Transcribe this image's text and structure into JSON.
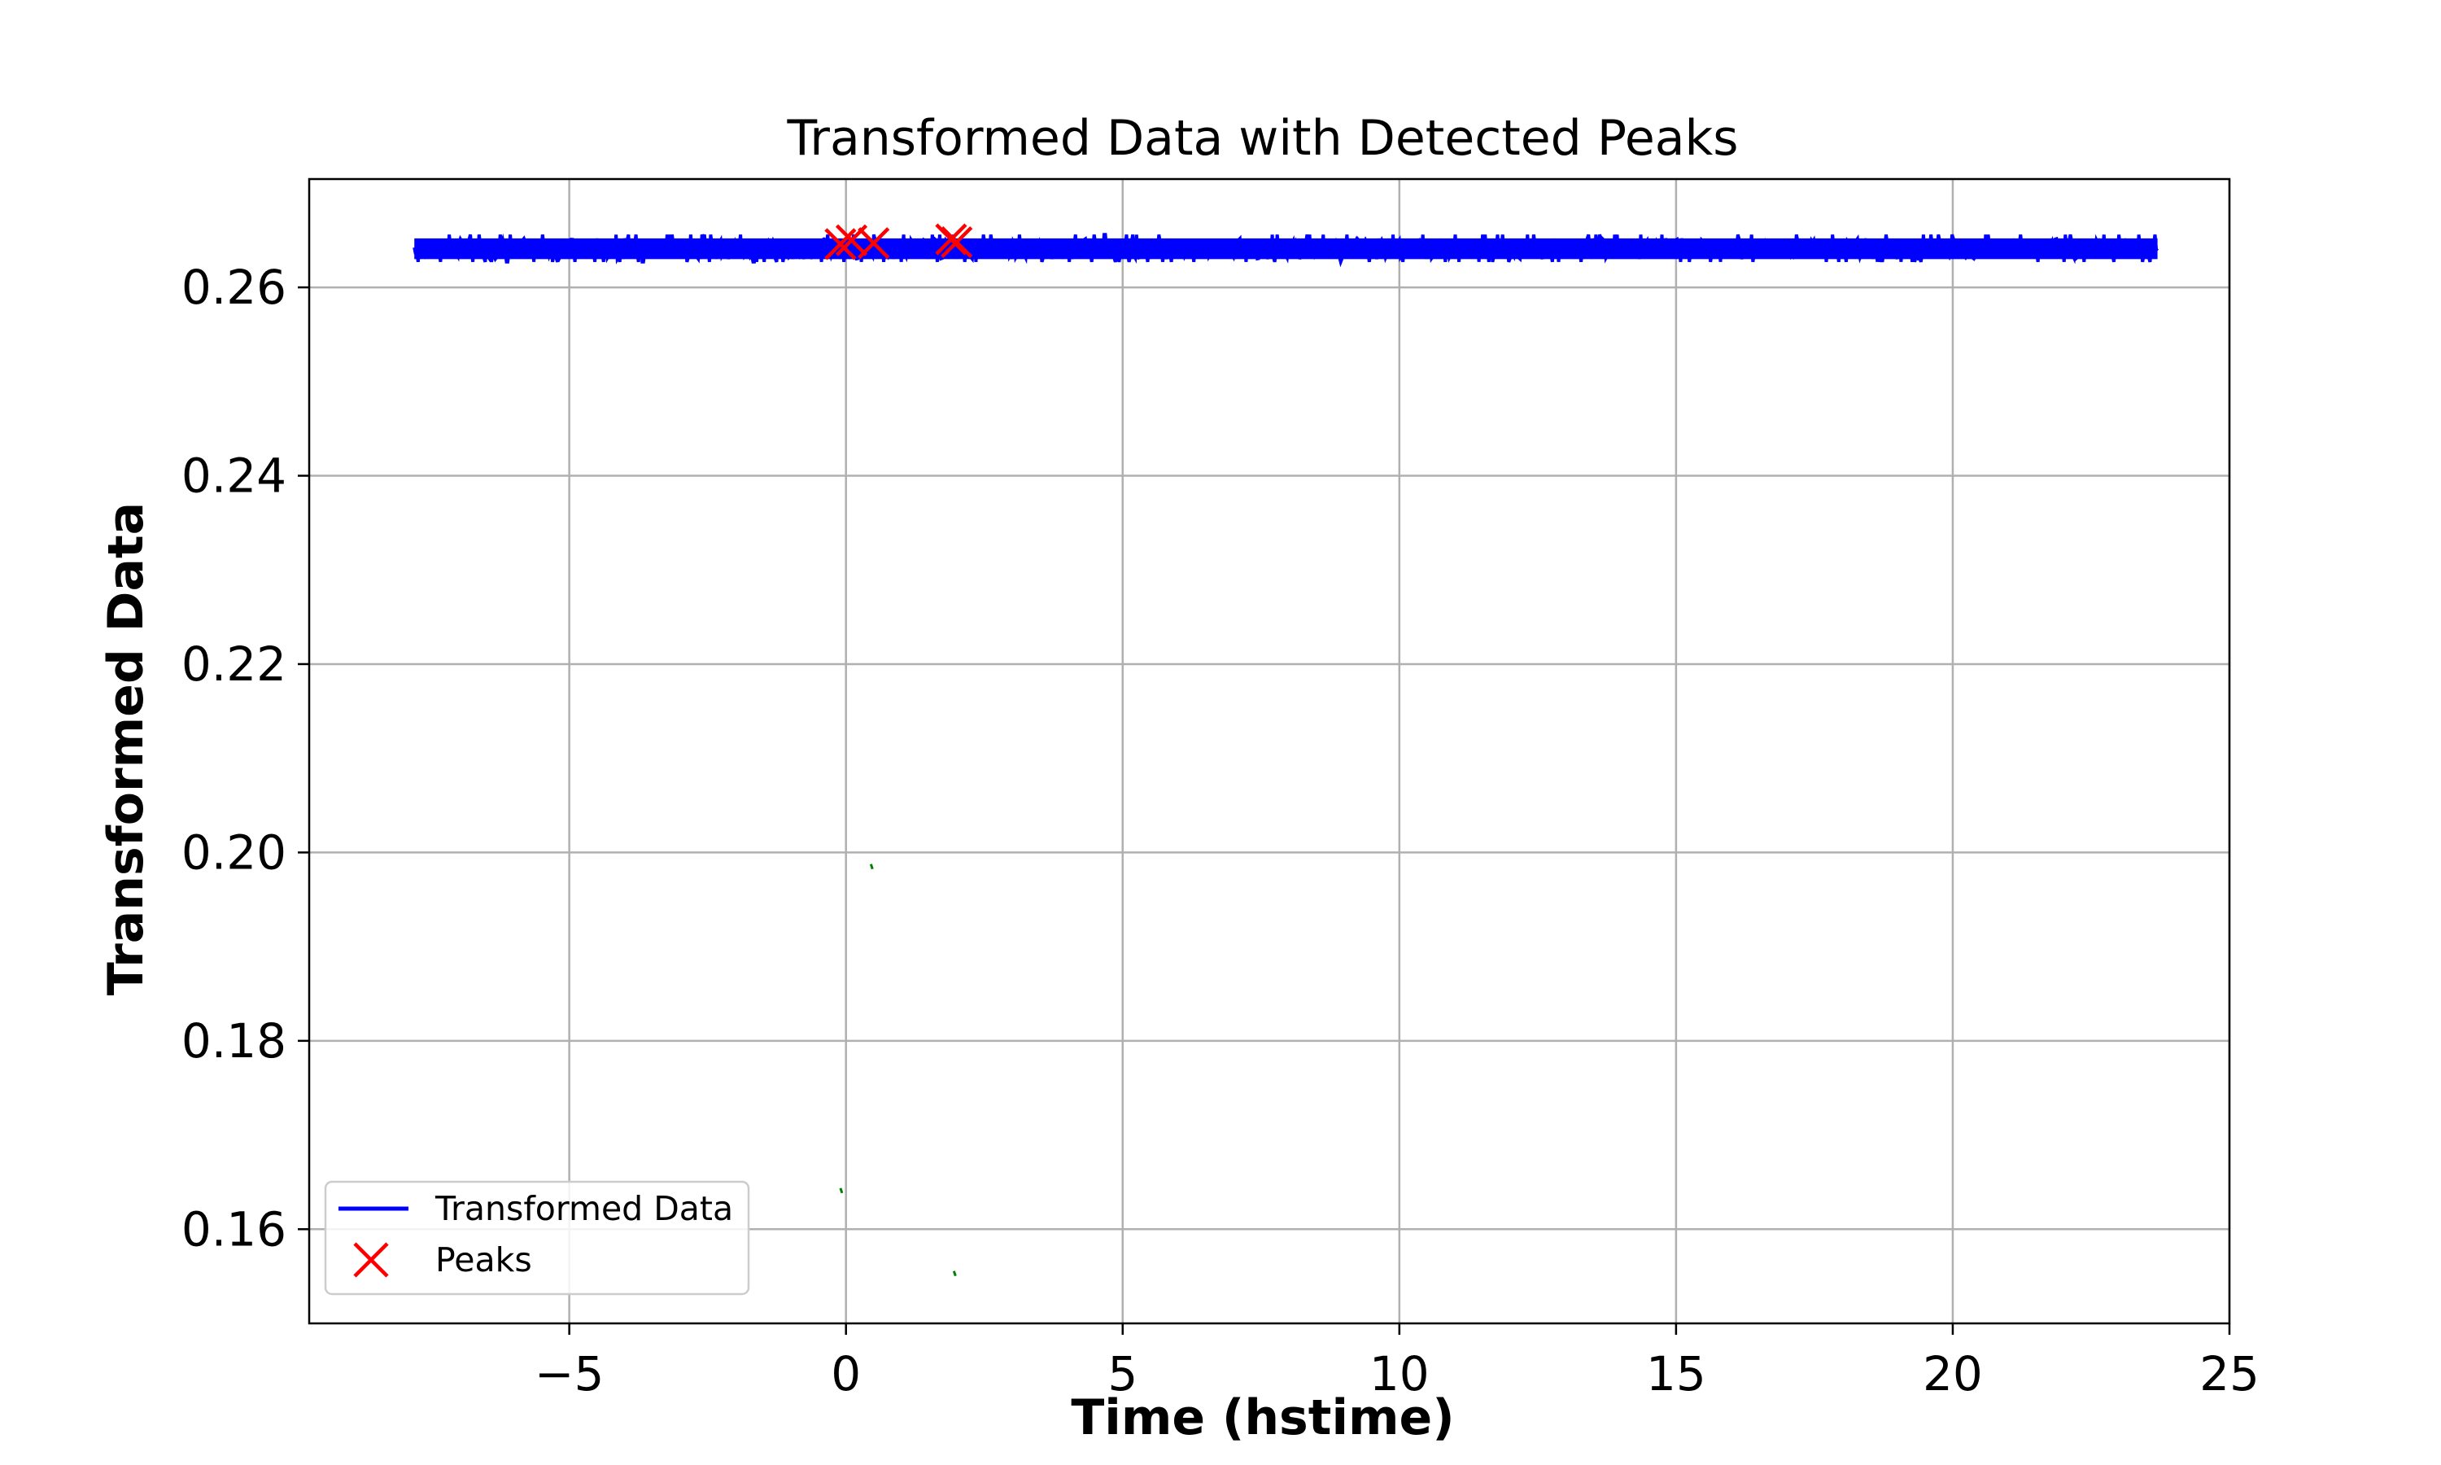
{
  "chart_data": {
    "type": "line",
    "title": "Transformed Data with Detected Peaks",
    "xlabel": "Time (hstime)",
    "ylabel": "Transformed Data",
    "xlim": [
      -9.7,
      25.0
    ],
    "ylim": [
      0.15,
      0.2715
    ],
    "xticks": [
      -5,
      0,
      5,
      10,
      15,
      20,
      25
    ],
    "xtick_labels": [
      "−5",
      "0",
      "5",
      "10",
      "15",
      "20",
      "25"
    ],
    "yticks": [
      0.16,
      0.18,
      0.2,
      0.22,
      0.24,
      0.26
    ],
    "ytick_labels": [
      "0.16",
      "0.18",
      "0.20",
      "0.22",
      "0.24",
      "0.26"
    ],
    "grid": true,
    "legend_position": "lower-left",
    "series": [
      {
        "name": "Transformed Data",
        "style": "line",
        "color": "#0000ff",
        "x_range": [
          -7.8,
          23.7
        ],
        "y_center": 0.2641,
        "y_band": [
          0.263,
          0.2652
        ],
        "spike_range": [
          0.2627,
          0.2656
        ]
      },
      {
        "name": "Peaks",
        "style": "marker-x",
        "color": "#ff0000",
        "x": [
          -0.1,
          0.1,
          0.5,
          1.9,
          2.0
        ],
        "y": [
          0.2646,
          0.265,
          0.2647,
          0.2651,
          0.2648
        ]
      },
      {
        "style": "tick",
        "color": "#008000",
        "x": [
          -0.1,
          0.45,
          1.95
        ],
        "y": [
          0.1641,
          0.1985,
          0.1553
        ]
      }
    ]
  }
}
